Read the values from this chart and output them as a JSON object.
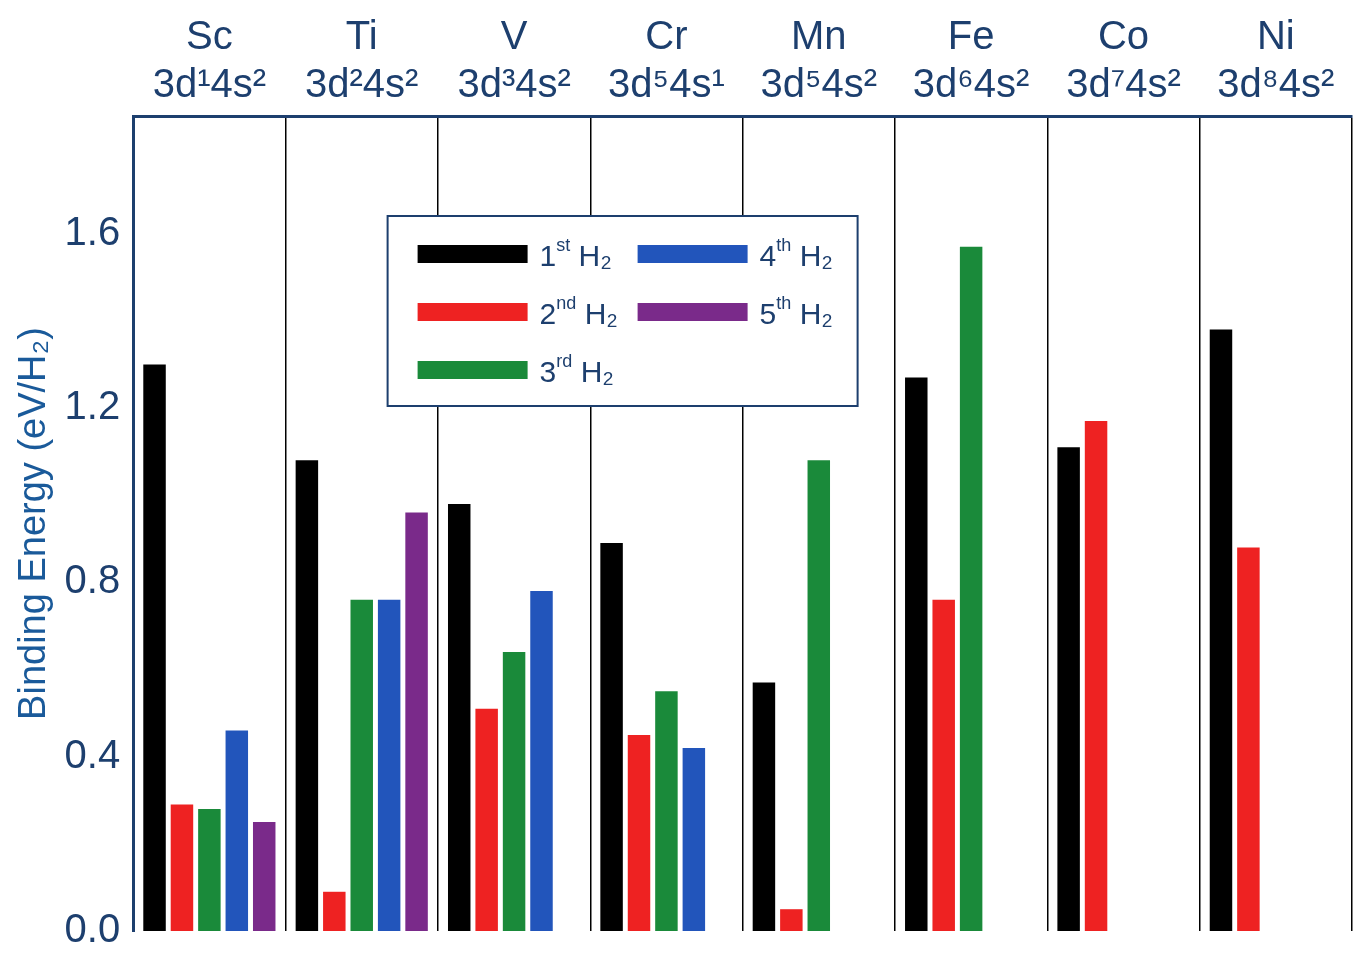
{
  "chart_data": {
    "type": "bar",
    "ylabel": "Binding Energy (eV/H₂)",
    "categories": [
      "Sc 3d¹4s²",
      "Ti 3d²4s²",
      "V 3d³4s²",
      "Cr 3d⁵4s¹",
      "Mn 3d⁵4s²",
      "Fe 3d⁶4s²",
      "Co 3d⁷4s²",
      "Ni 3d⁸4s²"
    ],
    "series": [
      {
        "name": "1$^{st}$ H₂",
        "color": "#000000",
        "values": [
          1.3,
          1.08,
          0.98,
          0.89,
          0.57,
          1.27,
          1.11,
          1.38
        ]
      },
      {
        "name": "2$^{nd}$ H₂",
        "color": "#ee2222",
        "values": [
          0.29,
          0.09,
          0.51,
          0.45,
          0.05,
          0.76,
          1.17,
          0.88
        ]
      },
      {
        "name": "3$^{rd}$ H₂",
        "color": "#1a8a3a",
        "values": [
          0.28,
          0.76,
          0.64,
          0.55,
          1.08,
          1.57,
          null,
          null
        ]
      },
      {
        "name": "4$^{th}$ H₂",
        "color": "#2255bb",
        "values": [
          0.46,
          0.76,
          0.78,
          0.42,
          null,
          null,
          null,
          null
        ]
      },
      {
        "name": "5$^{th}$ H₂",
        "color": "#7a2a8a",
        "values": [
          0.25,
          0.96,
          null,
          null,
          null,
          null,
          null,
          null
        ]
      }
    ],
    "ylim": [
      0,
      1.87
    ],
    "yticks": [
      {
        "value": 0,
        "label": "0.0"
      },
      {
        "value": 0.4,
        "label": "0.4"
      },
      {
        "value": 0.8,
        "label": "0.8"
      },
      {
        "value": 1.2,
        "label": "1.2"
      },
      {
        "value": 1.6,
        "label": "1.6"
      }
    ],
    "grid": "x",
    "legend": "top"
  }
}
